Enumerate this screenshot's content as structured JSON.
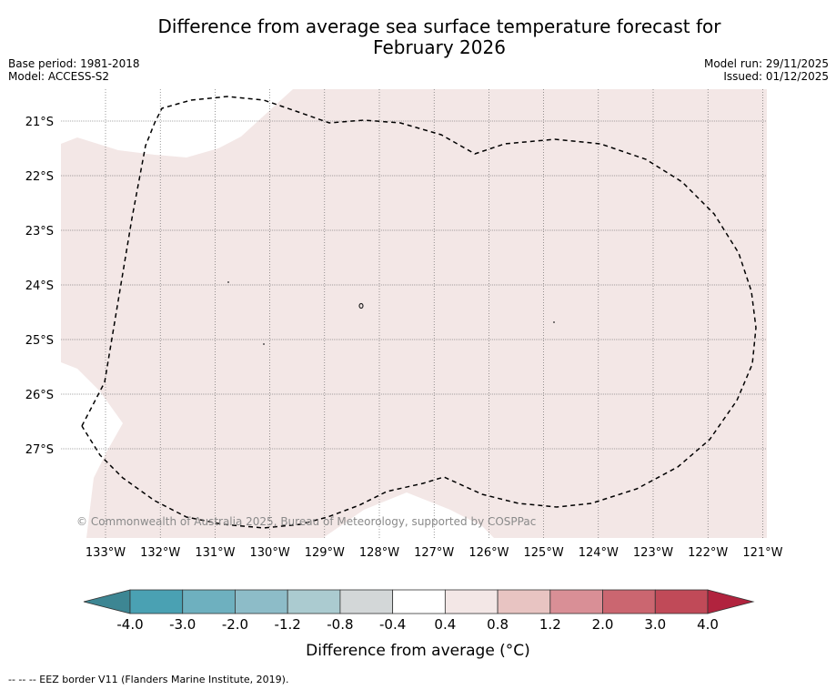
{
  "title_line1": "Difference from average sea surface temperature forecast for",
  "title_line2": "February 2026",
  "left_meta": {
    "base_period": "Base period: 1981-2018",
    "model": "Model: ACCESS-S2"
  },
  "right_meta": {
    "model_run": "Model run: 29/11/2025",
    "issued": "Issued: 01/12/2025"
  },
  "map": {
    "lon_ticks": [
      "133°W",
      "132°W",
      "131°W",
      "130°W",
      "129°W",
      "128°W",
      "127°W",
      "126°W",
      "125°W",
      "124°W",
      "123°W",
      "122°W",
      "121°W"
    ],
    "lat_ticks": [
      "21°S",
      "22°S",
      "23°S",
      "24°S",
      "25°S",
      "26°S",
      "27°S"
    ],
    "watermark": "© Commonwealth of Australia 2025, Bureau of Meteorology, supported by COSPPac",
    "land_color": "#f3e7e6",
    "ocean_default": "#ffffff"
  },
  "colorbar": {
    "labels": [
      "-4.0",
      "-3.0",
      "-2.0",
      "-1.2",
      "-0.8",
      "-0.4",
      "0.4",
      "0.8",
      "1.2",
      "2.0",
      "3.0",
      "4.0"
    ],
    "colors": [
      "#4aa1b3",
      "#6eb0bf",
      "#8dbcc8",
      "#abcbd0",
      "#d3d7d8",
      "#ffffff",
      "#f3e7e6",
      "#e8c4c2",
      "#d98f96",
      "#cb6670",
      "#c04a58"
    ],
    "under_color": "#3d8693",
    "over_color": "#b1233e",
    "title": "Difference from average (°C)"
  },
  "footnote": "--  --  -- EEZ border V11 (Flanders Marine Institute, 2019)."
}
